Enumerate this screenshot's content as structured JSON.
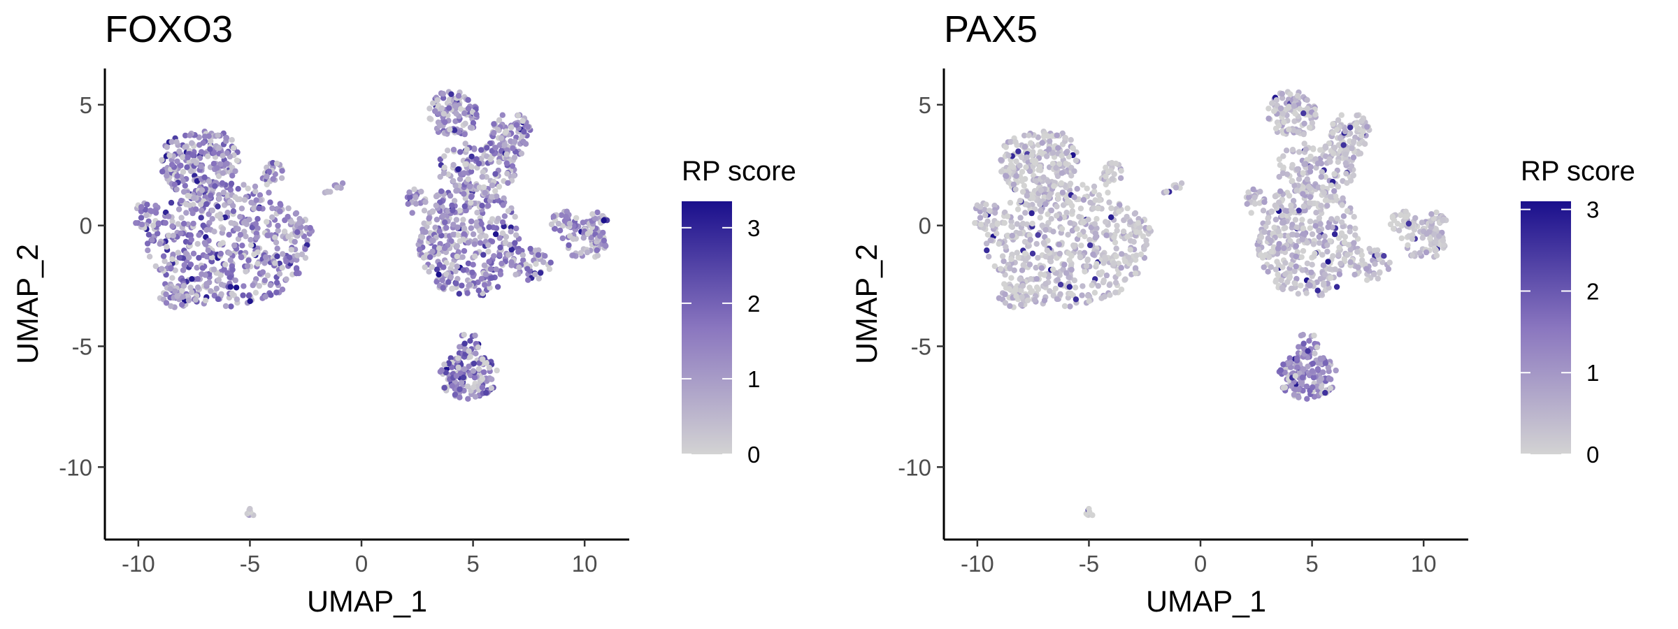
{
  "colors": {
    "low": "#d3d3d3",
    "mid": "#8a76bf",
    "high": "#1a0f8c",
    "axis": "#000000",
    "tick_text": "#4d4d4d"
  },
  "chart_data": [
    {
      "type": "scatter",
      "title": "FOXO3",
      "xlabel": "UMAP_1",
      "ylabel": "UMAP_2",
      "xlim": [
        -11.5,
        12
      ],
      "ylim": [
        -13,
        6.5
      ],
      "x_ticks": [
        -10,
        -5,
        0,
        5,
        10
      ],
      "x_tick_labels": [
        "-10",
        "-5",
        "0",
        "5",
        "10"
      ],
      "y_ticks": [
        -10,
        -5,
        0,
        5
      ],
      "y_tick_labels": [
        "-10",
        "-5",
        "0",
        "5"
      ],
      "grid": false,
      "legend": {
        "title": "RP score",
        "position": "right",
        "min": 0,
        "max": 3.35,
        "ticks": [
          0,
          1,
          2,
          3
        ],
        "tick_labels": [
          "0",
          "1",
          "2",
          "3"
        ]
      },
      "expression": {
        "cluster_left": 1.3,
        "cluster_top": 1.25,
        "cluster_right": 1.1,
        "cluster_bottom": 1.7,
        "cluster_tiny": 0.5,
        "spread": 0.9
      }
    },
    {
      "type": "scatter",
      "title": "PAX5",
      "xlabel": "UMAP_1",
      "ylabel": "UMAP_2",
      "xlim": [
        -11.5,
        12
      ],
      "ylim": [
        -13,
        6.5
      ],
      "x_ticks": [
        -10,
        -5,
        0,
        5,
        10
      ],
      "x_tick_labels": [
        "-10",
        "-5",
        "0",
        "5",
        "10"
      ],
      "y_ticks": [
        -10,
        -5,
        0,
        5
      ],
      "y_tick_labels": [
        "-10",
        "-5",
        "0",
        "5"
      ],
      "grid": false,
      "legend": {
        "title": "RP score",
        "position": "right",
        "min": 0,
        "max": 3.1,
        "ticks": [
          0,
          1,
          2,
          3
        ],
        "tick_labels": [
          "0",
          "1",
          "2",
          "3"
        ]
      },
      "expression": {
        "cluster_left": 0.25,
        "cluster_top": 0.35,
        "cluster_right": 0.3,
        "cluster_bottom": 1.3,
        "cluster_tiny": 0.1,
        "spread": 0.6
      }
    }
  ]
}
